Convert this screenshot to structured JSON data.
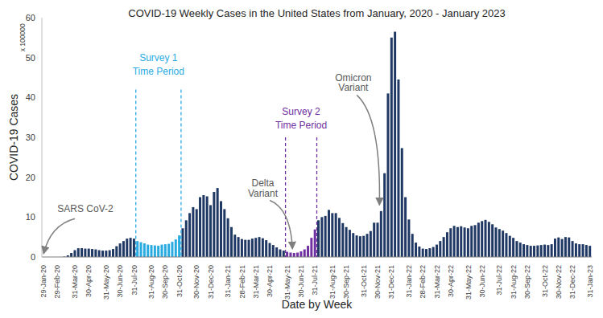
{
  "chart_data": {
    "type": "bar",
    "title": "COVID-19 Weekly Cases in the United States from January, 2020 - January 2023",
    "x_label": "Date by Week",
    "y_label": "COVID-19 Cases",
    "y_scale_label": "x 100000",
    "categories": [
      "29-Jan-20",
      null,
      null,
      null,
      "29-Feb-20",
      null,
      null,
      null,
      null,
      "31-Mar-20",
      null,
      null,
      null,
      "30-Apr-20",
      null,
      null,
      null,
      null,
      "31-May-20",
      null,
      null,
      null,
      "30-Jun-20",
      null,
      null,
      null,
      "31-Jul-20",
      null,
      null,
      null,
      null,
      "31-Aug-20",
      null,
      null,
      null,
      "30-Sep-20",
      null,
      null,
      null,
      "31-Oct-20",
      null,
      null,
      null,
      null,
      "30-Nov-20",
      null,
      null,
      null,
      "31-Dec-20",
      null,
      null,
      null,
      null,
      "31-Jan-21",
      null,
      null,
      null,
      "28-Feb-21",
      null,
      null,
      null,
      "31-Mar-21",
      null,
      null,
      null,
      "30-Apr-21",
      null,
      null,
      null,
      null,
      "31-May-21",
      null,
      null,
      null,
      "30-Jun-21",
      null,
      null,
      null,
      "31-Jul-21",
      null,
      null,
      null,
      null,
      "31-Aug-21",
      null,
      null,
      null,
      "30-Sep-21",
      null,
      null,
      null,
      null,
      "31-Oct-21",
      null,
      null,
      null,
      "30-Nov-21",
      null,
      null,
      null,
      "31-Dec-21",
      null,
      null,
      null,
      null,
      "31-Jan-22",
      null,
      null,
      null,
      "28-Feb-22",
      null,
      null,
      null,
      "31-Mar-22",
      null,
      null,
      null,
      "30-Apr-22",
      null,
      null,
      null,
      null,
      "31-May-22",
      null,
      null,
      null,
      "30-Jun-22",
      null,
      null,
      null,
      null,
      "31-Jul-22",
      null,
      null,
      null,
      "31-Aug-22",
      null,
      null,
      null,
      "30-Sep-22",
      null,
      null,
      null,
      null,
      "31-Oct-22",
      null,
      null,
      null,
      "30-Nov-22",
      null,
      null,
      null,
      "31-Dec-22",
      null,
      null,
      null,
      null,
      "31-Jan-23"
    ],
    "values": [
      0,
      0,
      0,
      0,
      0,
      0.01,
      0.1,
      0.4,
      1.0,
      1.7,
      2.2,
      2.2,
      2.1,
      2.1,
      2.0,
      1.9,
      1.7,
      1.6,
      1.6,
      1.7,
      2.0,
      2.7,
      3.4,
      4.0,
      4.6,
      4.8,
      4.6,
      4.0,
      3.7,
      3.4,
      3.1,
      3.0,
      2.9,
      2.8,
      3.1,
      3.2,
      3.3,
      3.8,
      4.4,
      5.4,
      7.2,
      9.2,
      11.0,
      12.5,
      12.0,
      15.0,
      15.5,
      15.2,
      13.0,
      16.3,
      17.3,
      14.0,
      12.0,
      9.7,
      7.5,
      5.6,
      5.0,
      4.5,
      4.3,
      4.3,
      4.6,
      4.8,
      5.0,
      4.7,
      4.2,
      3.5,
      3.0,
      2.4,
      1.9,
      1.6,
      1.3,
      1.1,
      1.0,
      1.1,
      1.4,
      1.9,
      2.8,
      4.8,
      6.9,
      9.2,
      10.0,
      10.3,
      11.8,
      11.0,
      11.0,
      9.8,
      8.5,
      7.5,
      6.8,
      6.0,
      5.4,
      5.2,
      5.3,
      5.8,
      6.5,
      8.6,
      8.6,
      11.5,
      21.0,
      41.0,
      55.0,
      56.5,
      44.5,
      27.3,
      15.0,
      9.4,
      5.8,
      3.6,
      2.6,
      2.1,
      2.0,
      2.2,
      2.5,
      3.1,
      4.0,
      5.0,
      6.2,
      7.2,
      7.8,
      7.5,
      7.7,
      7.4,
      7.2,
      7.8,
      8.0,
      8.6,
      9.0,
      9.3,
      8.8,
      8.2,
      7.4,
      7.0,
      6.6,
      6.0,
      5.3,
      4.8,
      4.0,
      3.6,
      3.2,
      3.0,
      2.8,
      2.8,
      2.9,
      3.0,
      3.1,
      3.0,
      3.2,
      4.6,
      4.9,
      4.5,
      5.0,
      4.9,
      4.0,
      3.4,
      3.2,
      3.2,
      3.0,
      2.8
    ],
    "colors": [
      "#203864",
      "#203864",
      "#203864",
      "#203864",
      "#203864",
      "#203864",
      "#203864",
      "#203864",
      "#203864",
      "#203864",
      "#203864",
      "#203864",
      "#203864",
      "#203864",
      "#203864",
      "#203864",
      "#203864",
      "#203864",
      "#203864",
      "#203864",
      "#203864",
      "#203864",
      "#203864",
      "#203864",
      "#203864",
      "#203864",
      "#203864",
      "#29abe2",
      "#29abe2",
      "#29abe2",
      "#29abe2",
      "#29abe2",
      "#29abe2",
      "#29abe2",
      "#29abe2",
      "#29abe2",
      "#29abe2",
      "#29abe2",
      "#29abe2",
      "#29abe2",
      "#203864",
      "#203864",
      "#203864",
      "#203864",
      "#203864",
      "#203864",
      "#203864",
      "#203864",
      "#203864",
      "#203864",
      "#203864",
      "#203864",
      "#203864",
      "#203864",
      "#203864",
      "#203864",
      "#203864",
      "#203864",
      "#203864",
      "#203864",
      "#203864",
      "#203864",
      "#203864",
      "#203864",
      "#203864",
      "#203864",
      "#203864",
      "#203864",
      "#203864",
      "#203864",
      "#7030a0",
      "#7030a0",
      "#7030a0",
      "#7030a0",
      "#7030a0",
      "#7030a0",
      "#7030a0",
      "#7030a0",
      "#7030a0",
      "#203864",
      "#203864",
      "#203864",
      "#203864",
      "#203864",
      "#203864",
      "#203864",
      "#203864",
      "#203864",
      "#203864",
      "#203864",
      "#203864",
      "#203864",
      "#203864",
      "#203864",
      "#203864",
      "#203864",
      "#203864",
      "#203864",
      "#203864",
      "#203864",
      "#203864",
      "#203864",
      "#203864",
      "#203864",
      "#203864",
      "#203864",
      "#203864",
      "#203864",
      "#203864",
      "#203864",
      "#203864",
      "#203864",
      "#203864",
      "#203864",
      "#203864",
      "#203864",
      "#203864",
      "#203864",
      "#203864",
      "#203864",
      "#203864",
      "#203864",
      "#203864",
      "#203864",
      "#203864",
      "#203864",
      "#203864",
      "#203864",
      "#203864",
      "#203864",
      "#203864",
      "#203864",
      "#203864",
      "#203864",
      "#203864",
      "#203864",
      "#203864",
      "#203864",
      "#203864",
      "#203864",
      "#203864",
      "#203864",
      "#203864",
      "#203864",
      "#203864",
      "#203864",
      "#203864",
      "#203864",
      "#203864",
      "#203864",
      "#203864",
      "#203864",
      "#203864",
      "#203864",
      "#203864",
      "#203864",
      "#203864",
      "#203864"
    ],
    "ylim": [
      0,
      60
    ],
    "yticks": [
      0,
      10,
      20,
      30,
      40,
      50,
      60
    ],
    "grid": false,
    "periods": [
      {
        "text": [
          "Survey 1",
          "Time Period"
        ],
        "color": "#29abe2"
      },
      {
        "text": [
          "Survey 2",
          "Time Period"
        ],
        "color": "#7030a0"
      }
    ],
    "annotations": [
      {
        "text": [
          "SARS CoV-2"
        ]
      },
      {
        "text": [
          "Delta",
          "Variant"
        ]
      },
      {
        "text": [
          "Omicron",
          "Variant"
        ]
      }
    ]
  }
}
